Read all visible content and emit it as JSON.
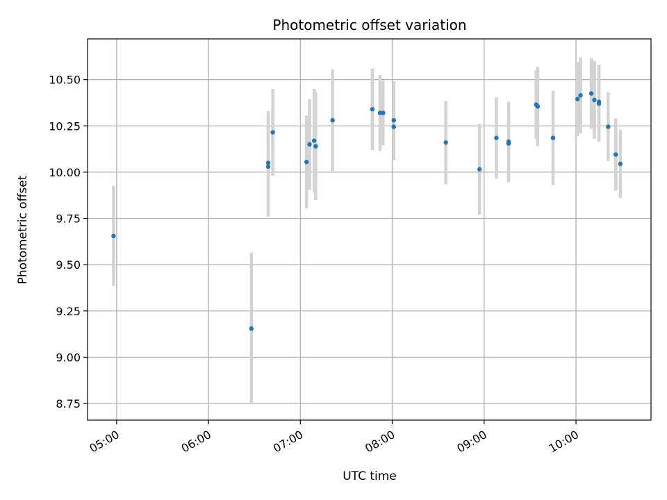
{
  "chart_data": {
    "type": "scatter",
    "title": "Photometric offset variation",
    "xlabel": "UTC time",
    "ylabel": "Photometric offset",
    "x_ticks": [
      "05:00",
      "06:00",
      "07:00",
      "08:00",
      "09:00",
      "10:00"
    ],
    "y_ticks": [
      "8.75",
      "9.00",
      "9.25",
      "9.50",
      "9.75",
      "10.00",
      "10.25",
      "10.50"
    ],
    "xlim": [
      "04:41",
      "10:49"
    ],
    "ylim": [
      8.66,
      10.72
    ],
    "grid": true,
    "marker_color": "#1f77b4",
    "errorbar_color": "#d3d3d3",
    "points": [
      {
        "x": "04:58",
        "y": 9.655,
        "err": 0.27
      },
      {
        "x": "06:28",
        "y": 9.155,
        "err": 0.41
      },
      {
        "x": "06:39",
        "y": 10.03,
        "err": 0.27
      },
      {
        "x": "06:39",
        "y": 10.05,
        "err": 0.28
      },
      {
        "x": "06:42",
        "y": 10.215,
        "err": 0.235
      },
      {
        "x": "07:04",
        "y": 10.055,
        "err": 0.25
      },
      {
        "x": "07:06",
        "y": 10.15,
        "err": 0.245
      },
      {
        "x": "07:09",
        "y": 10.17,
        "err": 0.28
      },
      {
        "x": "07:10",
        "y": 10.14,
        "err": 0.29
      },
      {
        "x": "07:21",
        "y": 10.28,
        "err": 0.275
      },
      {
        "x": "07:47",
        "y": 10.34,
        "err": 0.22
      },
      {
        "x": "07:52",
        "y": 10.32,
        "err": 0.205
      },
      {
        "x": "07:54",
        "y": 10.32,
        "err": 0.175
      },
      {
        "x": "08:01",
        "y": 10.28,
        "err": 0.21
      },
      {
        "x": "08:01",
        "y": 10.245,
        "err": 0.18
      },
      {
        "x": "08:35",
        "y": 10.16,
        "err": 0.225
      },
      {
        "x": "08:57",
        "y": 10.015,
        "err": 0.245
      },
      {
        "x": "09:08",
        "y": 10.185,
        "err": 0.22
      },
      {
        "x": "09:16",
        "y": 10.155,
        "err": 0.21
      },
      {
        "x": "09:16",
        "y": 10.165,
        "err": 0.215
      },
      {
        "x": "09:34",
        "y": 10.365,
        "err": 0.185
      },
      {
        "x": "09:35",
        "y": 10.355,
        "err": 0.215
      },
      {
        "x": "09:45",
        "y": 10.185,
        "err": 0.255
      },
      {
        "x": "10:01",
        "y": 10.395,
        "err": 0.2
      },
      {
        "x": "10:03",
        "y": 10.415,
        "err": 0.205
      },
      {
        "x": "10:10",
        "y": 10.425,
        "err": 0.19
      },
      {
        "x": "10:12",
        "y": 10.39,
        "err": 0.21
      },
      {
        "x": "10:15",
        "y": 10.38,
        "err": 0.2
      },
      {
        "x": "10:15",
        "y": 10.37,
        "err": 0.205
      },
      {
        "x": "10:21",
        "y": 10.245,
        "err": 0.185
      },
      {
        "x": "10:26",
        "y": 10.095,
        "err": 0.195
      },
      {
        "x": "10:29",
        "y": 10.045,
        "err": 0.185
      }
    ]
  }
}
